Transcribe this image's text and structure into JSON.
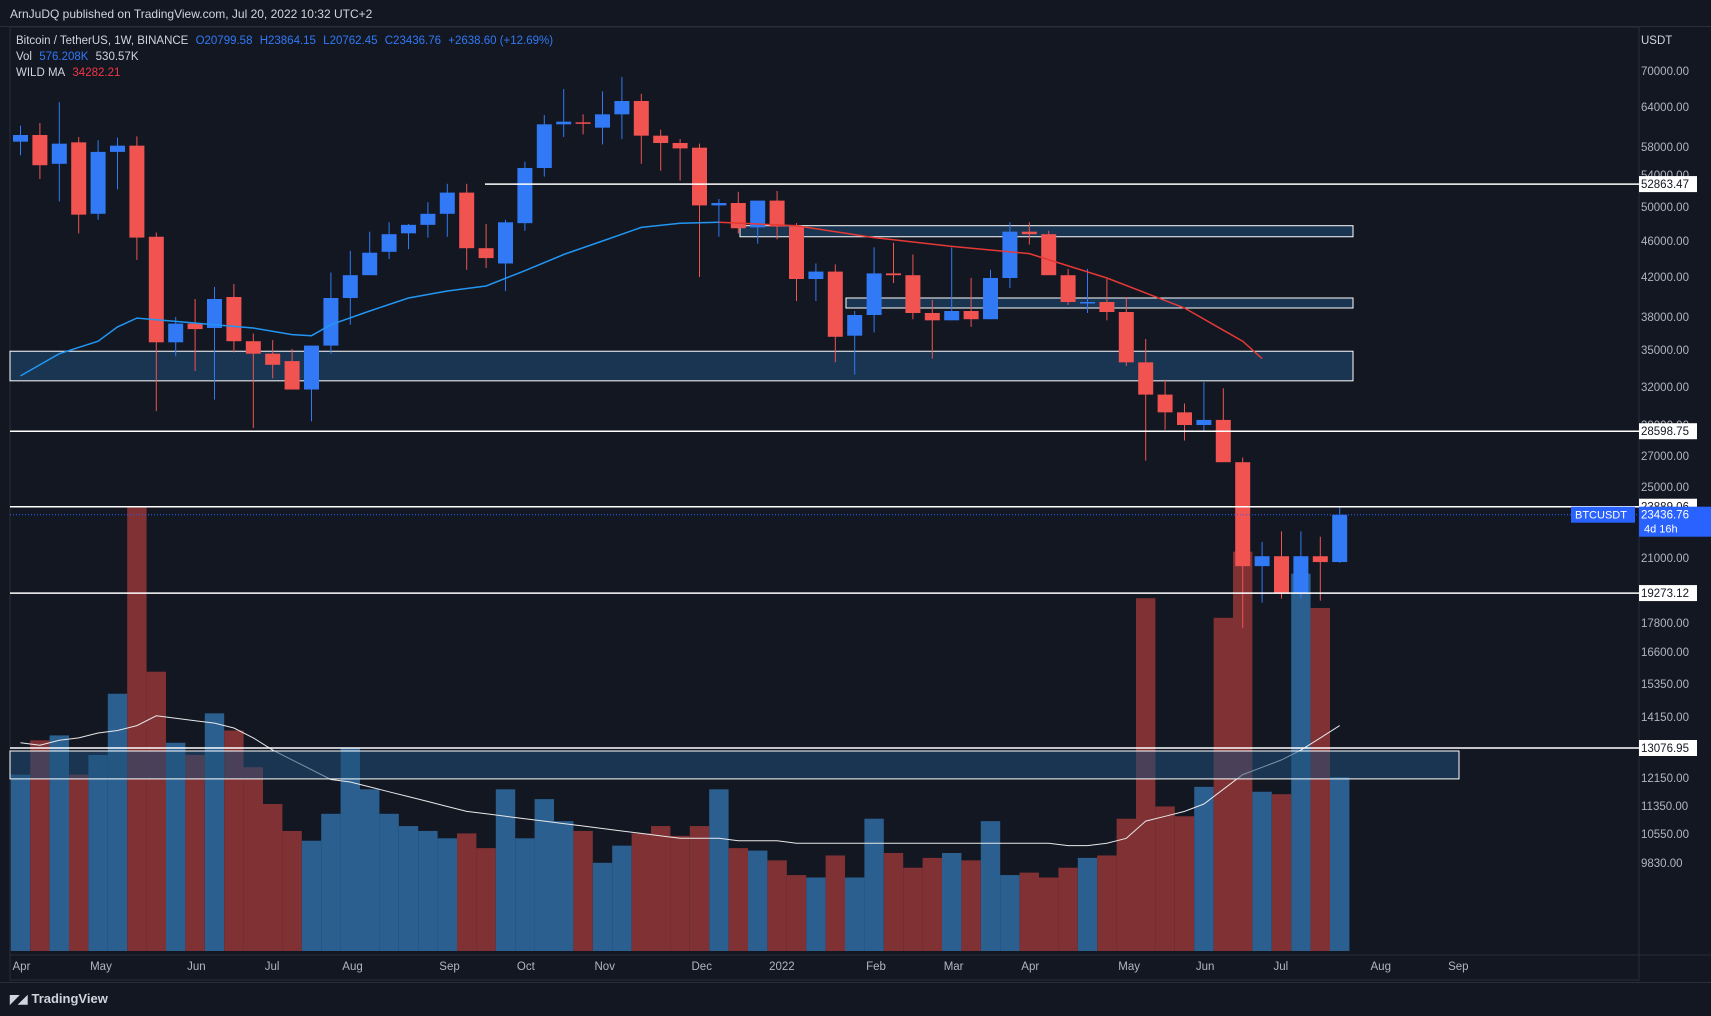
{
  "header": {
    "publisher": "ArnJuDQ published on TradingView.com, Jul 20, 2022 10:32 UTC+2"
  },
  "legend": {
    "symbol": "Bitcoin / TetherUS, 1W, BINANCE",
    "open": "O20799.58",
    "high": "H23864.15",
    "low": "L20762.45",
    "close": "C23436.76",
    "change": "+2638.60 (+12.69%)",
    "vol_label": "Vol",
    "vol_ma": "576.208K",
    "vol_value": "530.57K",
    "ma_label": "WILD MA",
    "ma_value": "34282.21"
  },
  "price_axis": {
    "currency": "USDT",
    "ticks": [
      "70000.00",
      "64000.00",
      "58000.00",
      "54000.00",
      "50000.00",
      "46000.00",
      "42000.00",
      "38000.00",
      "35000.00",
      "32000.00",
      "29000.00",
      "27000.00",
      "25000.00",
      "21000.00",
      "17800.00",
      "16600.00",
      "15350.00",
      "14150.00",
      "12150.00",
      "11350.00",
      "10550.00",
      "9830.00"
    ],
    "level_labels": [
      "52863.47",
      "28598.75",
      "23889.06",
      "19273.12",
      "13076.95"
    ],
    "current_symbol": "BTCUSDT",
    "current_price": "23436.76",
    "countdown": "4d 16h"
  },
  "time_axis": {
    "labels": [
      "Apr",
      "May",
      "Jun",
      "Jul",
      "Aug",
      "Sep",
      "Oct",
      "Nov",
      "Dec",
      "2022",
      "Feb",
      "Mar",
      "Apr",
      "May",
      "Jun",
      "Jul",
      "Aug",
      "Sep"
    ]
  },
  "footer": {
    "brand": "TradingView"
  },
  "colors": {
    "up": "#3179f5",
    "down": "#f05350",
    "vol_up": "#2a5f8f",
    "vol_down": "#7f3134",
    "zone": "#1f4e79",
    "bg": "#131722",
    "ma_blue": "#2196f3",
    "ma_red": "#e53935"
  },
  "chart_data": {
    "type": "candlestick",
    "series": [
      {
        "name": "BTCUSDT",
        "ohlc": [
          [
            58800,
            61200,
            56800,
            59800
          ],
          [
            59800,
            61600,
            53500,
            55400
          ],
          [
            55600,
            64800,
            50700,
            58500
          ],
          [
            58700,
            59500,
            46900,
            49100
          ],
          [
            49200,
            59000,
            48500,
            57300
          ],
          [
            57300,
            59400,
            52200,
            58200
          ],
          [
            58200,
            59600,
            43900,
            46400
          ],
          [
            46500,
            47000,
            30100,
            35700
          ],
          [
            35700,
            38000,
            34500,
            37400
          ],
          [
            37400,
            39800,
            33300,
            36900
          ],
          [
            37000,
            41000,
            31000,
            39800
          ],
          [
            40000,
            41300,
            34800,
            35800
          ],
          [
            35800,
            36500,
            28800,
            34700
          ],
          [
            34700,
            35900,
            32700,
            33800
          ],
          [
            34100,
            35100,
            31900,
            31800
          ],
          [
            31800,
            35200,
            29300,
            35400
          ],
          [
            35400,
            42500,
            34700,
            39900
          ],
          [
            39900,
            44900,
            37300,
            42200
          ],
          [
            42200,
            47100,
            42400,
            44700
          ],
          [
            44800,
            48200,
            44000,
            46800
          ],
          [
            46900,
            48000,
            45100,
            47900
          ],
          [
            47900,
            50600,
            46400,
            49200
          ],
          [
            49200,
            52900,
            46500,
            51800
          ],
          [
            51800,
            52900,
            42800,
            45200
          ],
          [
            45200,
            48000,
            43000,
            44100
          ],
          [
            43500,
            48500,
            40600,
            48200
          ],
          [
            48100,
            55900,
            47200,
            55000
          ],
          [
            55000,
            62800,
            53800,
            61400
          ],
          [
            61400,
            67000,
            59500,
            61800
          ],
          [
            61700,
            62900,
            59900,
            61500
          ],
          [
            60900,
            66600,
            58400,
            62900
          ],
          [
            62900,
            69000,
            59200,
            65000
          ],
          [
            65000,
            66200,
            55600,
            59700
          ],
          [
            59700,
            60600,
            54600,
            58600
          ],
          [
            58600,
            59200,
            53300,
            57800
          ],
          [
            57900,
            58500,
            42000,
            50200
          ],
          [
            50200,
            51000,
            46500,
            50500
          ],
          [
            50500,
            51900,
            46900,
            47500
          ],
          [
            47600,
            50300,
            45700,
            50800
          ],
          [
            50800,
            52000,
            46200,
            47700
          ],
          [
            47700,
            48100,
            39600,
            41800
          ],
          [
            41800,
            43500,
            39600,
            42600
          ],
          [
            42600,
            43400,
            34000,
            36200
          ],
          [
            36300,
            38600,
            33000,
            38200
          ],
          [
            38200,
            45300,
            36600,
            42400
          ],
          [
            42400,
            45800,
            41400,
            42200
          ],
          [
            42200,
            44500,
            37800,
            38400
          ],
          [
            38400,
            39700,
            34300,
            37700
          ],
          [
            37700,
            45300,
            37700,
            38600
          ],
          [
            38600,
            41900,
            37100,
            37800
          ],
          [
            37800,
            42800,
            37800,
            41900
          ],
          [
            41900,
            48200,
            40900,
            47100
          ],
          [
            47100,
            48200,
            45600,
            46800
          ],
          [
            46800,
            47200,
            42700,
            42200
          ],
          [
            42200,
            42900,
            39200,
            39500
          ],
          [
            39500,
            42900,
            38400,
            39500
          ],
          [
            39500,
            41800,
            37700,
            38500
          ],
          [
            38500,
            40000,
            33700,
            34000
          ],
          [
            34000,
            36000,
            26700,
            31400
          ],
          [
            31400,
            32600,
            28700,
            30000
          ],
          [
            30000,
            30700,
            28000,
            29000
          ],
          [
            29000,
            32400,
            28600,
            29400
          ],
          [
            29400,
            31900,
            26600,
            26600
          ],
          [
            26600,
            26900,
            17600,
            20600
          ],
          [
            20600,
            21900,
            18800,
            21100
          ],
          [
            21100,
            22500,
            19000,
            19300
          ],
          [
            19300,
            22500,
            19000,
            21100
          ],
          [
            21100,
            22200,
            18900,
            20800
          ],
          [
            20800,
            23864,
            20762,
            23437
          ]
        ]
      },
      {
        "name": "Vol",
        "values": [
          7.2,
          8.6,
          8.8,
          7.2,
          8.0,
          10.5,
          18.1,
          11.4,
          8.5,
          8.0,
          9.7,
          9.0,
          7.5,
          6.0,
          4.9,
          4.5,
          5.6,
          8.3,
          6.6,
          5.6,
          5.1,
          4.9,
          4.6,
          4.8,
          4.2,
          6.6,
          4.6,
          6.2,
          5.3,
          4.9,
          3.6,
          4.3,
          4.8,
          5.1,
          4.7,
          5.1,
          6.6,
          4.2,
          4.1,
          3.7,
          3.1,
          3.0,
          3.9,
          3.0,
          5.4,
          4.0,
          3.4,
          3.8,
          4.0,
          3.7,
          5.3,
          3.1,
          3.2,
          3.0,
          3.4,
          3.8,
          3.9,
          5.4,
          14.4,
          5.9,
          5.5,
          6.7,
          13.6,
          16.3,
          6.5,
          6.4,
          15.4,
          14.0,
          7.1
        ]
      },
      {
        "name": "Vol MA",
        "values": [
          8.5,
          8.4,
          8.6,
          8.7,
          8.9,
          9.0,
          9.2,
          9.6,
          9.5,
          9.4,
          9.3,
          9.1,
          8.7,
          8.2,
          7.8,
          7.4,
          7.0,
          6.9,
          6.7,
          6.5,
          6.3,
          6.1,
          5.9,
          5.7,
          5.6,
          5.5,
          5.4,
          5.3,
          5.2,
          5.1,
          5.0,
          4.9,
          4.8,
          4.7,
          4.6,
          4.6,
          4.6,
          4.5,
          4.5,
          4.5,
          4.4,
          4.4,
          4.4,
          4.4,
          4.4,
          4.4,
          4.4,
          4.4,
          4.4,
          4.4,
          4.4,
          4.4,
          4.4,
          4.4,
          4.3,
          4.3,
          4.4,
          4.6,
          5.3,
          5.5,
          5.7,
          6.0,
          6.6,
          7.2,
          7.5,
          7.8,
          8.2,
          8.7,
          9.2
        ]
      },
      {
        "name": "WILD MA",
        "ma_blue": [
          [
            0,
            32900
          ],
          [
            2,
            34700
          ],
          [
            4,
            35800
          ],
          [
            5,
            37100
          ],
          [
            6,
            37900
          ],
          [
            8,
            37600
          ],
          [
            10,
            37300
          ],
          [
            12,
            37000
          ],
          [
            14,
            36400
          ],
          [
            15,
            36300
          ],
          [
            16,
            37300
          ],
          [
            18,
            38600
          ],
          [
            20,
            39900
          ],
          [
            22,
            40600
          ],
          [
            24,
            41100
          ],
          [
            26,
            42700
          ],
          [
            28,
            44500
          ],
          [
            30,
            46000
          ],
          [
            32,
            47600
          ],
          [
            34,
            48100
          ],
          [
            36,
            48200
          ]
        ],
        "ma_red": [
          [
            36,
            48200
          ],
          [
            40,
            47800
          ],
          [
            44,
            46400
          ],
          [
            48,
            45400
          ],
          [
            52,
            44600
          ],
          [
            56,
            41900
          ],
          [
            60,
            38900
          ],
          [
            62,
            36800
          ],
          [
            63,
            35800
          ],
          [
            64,
            34300
          ]
        ]
      }
    ],
    "levels": [
      52863.47,
      28598.75,
      23889.06,
      19273.12
    ],
    "zones": [
      [
        46500,
        47800
      ],
      [
        38900,
        39900
      ],
      [
        32500,
        34900
      ]
    ],
    "volume_level": 13076.95,
    "volume_zone": [
      12400,
      13076.95
    ],
    "x_labels": [
      "Apr",
      "May",
      "Jun",
      "Jul",
      "Aug",
      "Sep",
      "Oct",
      "Nov",
      "Dec",
      "2022",
      "Feb",
      "Mar",
      "Apr",
      "May",
      "Jun",
      "Jul",
      "Aug",
      "Sep"
    ],
    "x_label_index": [
      0,
      4,
      9,
      13,
      17,
      22,
      26,
      30,
      35,
      39,
      44,
      48,
      52,
      57,
      61,
      65,
      70,
      74
    ],
    "title": "Bitcoin / TetherUS, 1W, BINANCE"
  }
}
